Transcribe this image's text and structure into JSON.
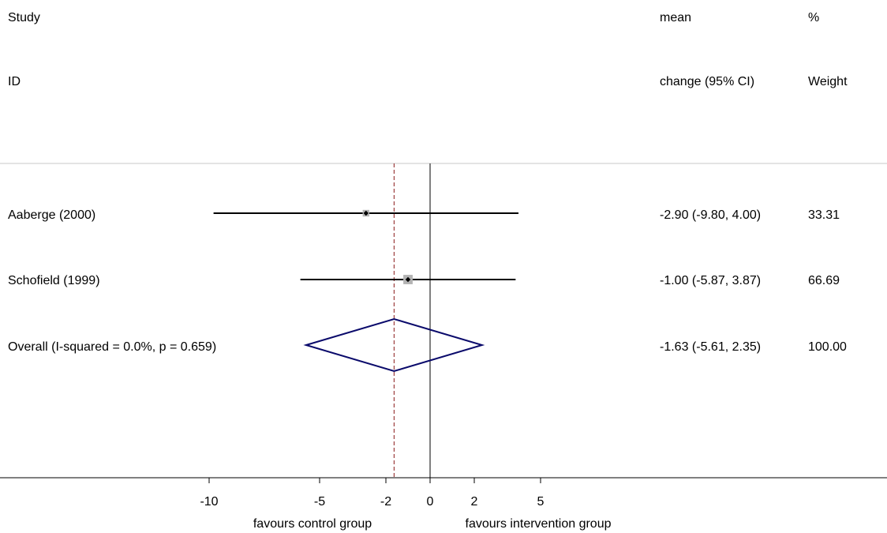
{
  "chart_data": {
    "type": "forest",
    "headers": {
      "study_line1": "Study",
      "study_line2": "ID",
      "effect_line1": "mean",
      "effect_line2": "change (95% CI)",
      "weight_line1": "%",
      "weight_line2": "Weight"
    },
    "studies": [
      {
        "label": "Aaberge (2000)",
        "estimate": -2.9,
        "lower": -9.8,
        "upper": 4.0,
        "ci_text": "-2.90 (-9.80, 4.00)",
        "weight_text": "33.31",
        "weight": 33.31
      },
      {
        "label": "Schofield (1999)",
        "estimate": -1.0,
        "lower": -5.87,
        "upper": 3.87,
        "ci_text": "-1.00 (-5.87, 3.87)",
        "weight_text": "66.69",
        "weight": 66.69
      }
    ],
    "overall": {
      "label": "Overall  (I-squared = 0.0%, p = 0.659)",
      "estimate": -1.63,
      "lower": -5.61,
      "upper": 2.35,
      "ci_text": "-1.63 (-5.61, 2.35)",
      "weight_text": "100.00"
    },
    "x_ticks": [
      {
        "value": -10,
        "label": "-10"
      },
      {
        "value": -5,
        "label": "-5"
      },
      {
        "value": -2,
        "label": "-2"
      },
      {
        "value": 0,
        "label": "0"
      },
      {
        "value": 2,
        "label": "2"
      },
      {
        "value": 5,
        "label": "5"
      }
    ],
    "xlim": [
      -10,
      5
    ],
    "null_value": 0,
    "favours_left": "favours control group",
    "favours_right": "favours intervention group",
    "colors": {
      "line": "#000000",
      "overall_line": "#8b1a1a",
      "diamond": "#0a0a6b",
      "weight_box": "#b3b3b3",
      "header_rule": "#c8c8c8"
    }
  }
}
